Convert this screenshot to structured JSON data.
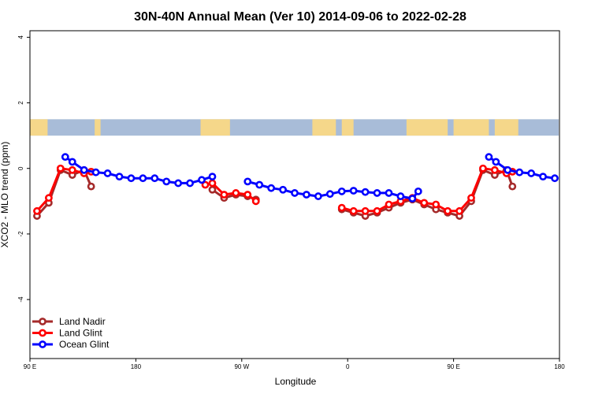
{
  "chart_data": {
    "type": "line",
    "title": "30N-40N Annual Mean (Ver 10)   2014-09-06 to 2022-02-28",
    "xlabel": "Longitude",
    "ylabel": "XCO2 - MLO trend (ppm)",
    "xlim": [
      90,
      540
    ],
    "ylim": [
      -5.8,
      4.2
    ],
    "x_ticks": [
      {
        "value": 90,
        "label": "90 E"
      },
      {
        "value": 180,
        "label": "180"
      },
      {
        "value": 270,
        "label": "90 W"
      },
      {
        "value": 360,
        "label": "0"
      },
      {
        "value": 450,
        "label": "90 E"
      },
      {
        "value": 540,
        "label": "180"
      }
    ],
    "y_ticks": [
      -4,
      -2,
      0,
      2,
      4
    ],
    "grid": false,
    "legend_position": "bottom-left",
    "series": [
      {
        "name": "Land Nadir",
        "color": "#a52a2a",
        "segments": [
          [
            [
              96,
              -1.45
            ],
            [
              106,
              -1.05
            ],
            [
              116,
              -0.05
            ],
            [
              126,
              -0.2
            ],
            [
              136,
              -0.05
            ],
            [
              142,
              -0.55
            ]
          ],
          [
            [
              245,
              -0.65
            ],
            [
              255,
              -0.9
            ],
            [
              265,
              -0.8
            ],
            [
              275,
              -0.85
            ],
            [
              282,
              -0.95
            ]
          ],
          [
            [
              355,
              -1.25
            ],
            [
              365,
              -1.35
            ],
            [
              375,
              -1.45
            ],
            [
              385,
              -1.35
            ],
            [
              395,
              -1.2
            ],
            [
              405,
              -1.05
            ],
            [
              415,
              -0.95
            ],
            [
              425,
              -1.1
            ],
            [
              435,
              -1.25
            ],
            [
              445,
              -1.35
            ],
            [
              455,
              -1.45
            ],
            [
              465,
              -1.0
            ],
            [
              475,
              -0.05
            ],
            [
              485,
              -0.2
            ],
            [
              495,
              -0.05
            ],
            [
              500,
              -0.55
            ]
          ]
        ]
      },
      {
        "name": "Land Glint",
        "color": "#ff0000",
        "segments": [
          [
            [
              96,
              -1.3
            ],
            [
              106,
              -0.9
            ],
            [
              116,
              0.0
            ],
            [
              126,
              -0.05
            ],
            [
              136,
              -0.15
            ],
            [
              142,
              -0.1
            ]
          ],
          [
            [
              239,
              -0.5
            ],
            [
              245,
              -0.45
            ],
            [
              255,
              -0.8
            ],
            [
              265,
              -0.75
            ],
            [
              275,
              -0.8
            ],
            [
              282,
              -1.0
            ]
          ],
          [
            [
              355,
              -1.2
            ],
            [
              365,
              -1.3
            ],
            [
              375,
              -1.3
            ],
            [
              385,
              -1.3
            ],
            [
              395,
              -1.1
            ],
            [
              405,
              -1.0
            ],
            [
              415,
              -0.9
            ],
            [
              425,
              -1.05
            ],
            [
              435,
              -1.1
            ],
            [
              445,
              -1.3
            ],
            [
              455,
              -1.3
            ],
            [
              465,
              -0.9
            ],
            [
              475,
              0.0
            ],
            [
              485,
              -0.05
            ],
            [
              495,
              -0.15
            ],
            [
              500,
              -0.1
            ]
          ]
        ]
      },
      {
        "name": "Ocean Glint",
        "color": "#0000ff",
        "segments": [
          [
            [
              120,
              0.35
            ],
            [
              126,
              0.2
            ],
            [
              136,
              -0.05
            ],
            [
              146,
              -0.12
            ],
            [
              156,
              -0.15
            ],
            [
              166,
              -0.25
            ],
            [
              176,
              -0.3
            ],
            [
              186,
              -0.3
            ],
            [
              196,
              -0.3
            ],
            [
              206,
              -0.4
            ],
            [
              216,
              -0.45
            ],
            [
              226,
              -0.45
            ],
            [
              236,
              -0.35
            ],
            [
              245,
              -0.25
            ]
          ],
          [
            [
              275,
              -0.4
            ],
            [
              285,
              -0.5
            ],
            [
              295,
              -0.6
            ],
            [
              305,
              -0.65
            ],
            [
              315,
              -0.75
            ],
            [
              325,
              -0.8
            ],
            [
              335,
              -0.85
            ],
            [
              345,
              -0.78
            ],
            [
              355,
              -0.7
            ],
            [
              365,
              -0.68
            ],
            [
              375,
              -0.72
            ],
            [
              385,
              -0.75
            ],
            [
              395,
              -0.75
            ],
            [
              405,
              -0.85
            ],
            [
              415,
              -0.92
            ],
            [
              420,
              -0.7
            ]
          ],
          [
            [
              480,
              0.35
            ],
            [
              486,
              0.2
            ],
            [
              496,
              -0.05
            ],
            [
              506,
              -0.12
            ],
            [
              516,
              -0.15
            ],
            [
              526,
              -0.25
            ],
            [
              536,
              -0.3
            ]
          ]
        ]
      }
    ],
    "map_band": {
      "y_range": [
        1.0,
        1.5
      ],
      "ocean_color": "#a8bcd8",
      "land_color": "#f5d78a",
      "land_x_ranges": [
        [
          90,
          105
        ],
        [
          145,
          150
        ],
        [
          235,
          260
        ],
        [
          330,
          350
        ],
        [
          355,
          365
        ],
        [
          410,
          445
        ],
        [
          450,
          480
        ],
        [
          485,
          505
        ]
      ]
    }
  }
}
